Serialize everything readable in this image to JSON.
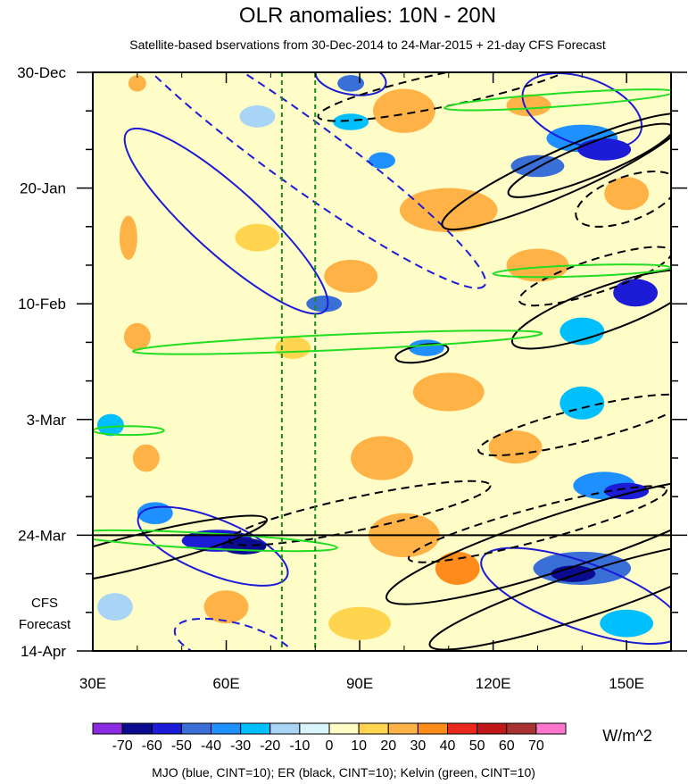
{
  "chart_data": {
    "type": "heatmap",
    "title": "OLR anomalies: 10N - 20N",
    "subtitle": "Satellite-based bservations from 30-Dec-2014 to 24-Mar-2015 + 21-day CFS Forecast",
    "x_axis": {
      "label": "",
      "range": [
        30,
        160
      ],
      "ticks": [
        {
          "value": 30,
          "label": "30E"
        },
        {
          "value": 60,
          "label": "60E"
        },
        {
          "value": 90,
          "label": "90E"
        },
        {
          "value": 120,
          "label": "120E"
        },
        {
          "value": 150,
          "label": "150E"
        }
      ],
      "minor_ticks": [
        40,
        50,
        70,
        80,
        100,
        110,
        130,
        140
      ]
    },
    "y_axis": {
      "label": "",
      "range_days": [
        0,
        105
      ],
      "direction": "time increases downward",
      "ticks": [
        {
          "day": 0,
          "label": "30-Dec"
        },
        {
          "day": 21,
          "label": "20-Jan"
        },
        {
          "day": 42,
          "label": "10-Feb"
        },
        {
          "day": 63,
          "label": "3-Mar"
        },
        {
          "day": 84,
          "label": "24-Mar"
        },
        {
          "day": 105,
          "label": "14-Apr"
        }
      ],
      "minor_tick_every_days": 7
    },
    "forecast_start_day": 84,
    "forecast_label_line1": "CFS",
    "forecast_label_line2": "Forecast",
    "reference_lon_lines": [
      72.5,
      80
    ],
    "colorbar": {
      "units": "W/m^2",
      "levels": [
        -70,
        -60,
        -50,
        -40,
        -30,
        -20,
        -10,
        0,
        10,
        20,
        30,
        40,
        50,
        60,
        70
      ],
      "colors": [
        "#8a2be2",
        "#0b0b8f",
        "#1c1cd6",
        "#3a6fd8",
        "#1e90ff",
        "#00bfff",
        "#a8d5f5",
        "#d9f4fa",
        "#fffdc7",
        "#ffd54f",
        "#ffb347",
        "#ff8c1a",
        "#e8291c",
        "#c01818",
        "#a83232",
        "#ff77cc"
      ]
    },
    "anomaly_cells": [
      {
        "lon": 40,
        "day": 2,
        "w": 4,
        "h": 3,
        "value": 20
      },
      {
        "lon": 88,
        "day": 2,
        "w": 6,
        "h": 3,
        "value": -50
      },
      {
        "lon": 100,
        "day": 7,
        "w": 14,
        "h": 8,
        "value": 20
      },
      {
        "lon": 88,
        "day": 9,
        "w": 8,
        "h": 3,
        "value": -30
      },
      {
        "lon": 67,
        "day": 8,
        "w": 8,
        "h": 4,
        "value": -20
      },
      {
        "lon": 128,
        "day": 6,
        "w": 10,
        "h": 4,
        "value": 20
      },
      {
        "lon": 140,
        "day": 12,
        "w": 16,
        "h": 5,
        "value": -40
      },
      {
        "lon": 145,
        "day": 14,
        "w": 12,
        "h": 4,
        "value": -60
      },
      {
        "lon": 130,
        "day": 17,
        "w": 12,
        "h": 4,
        "value": -50
      },
      {
        "lon": 95,
        "day": 16,
        "w": 6,
        "h": 3,
        "value": -40
      },
      {
        "lon": 110,
        "day": 25,
        "w": 22,
        "h": 8,
        "value": 20
      },
      {
        "lon": 150,
        "day": 22,
        "w": 10,
        "h": 6,
        "value": 20
      },
      {
        "lon": 38,
        "day": 30,
        "w": 4,
        "h": 8,
        "value": 20
      },
      {
        "lon": 67,
        "day": 30,
        "w": 10,
        "h": 5,
        "value": 10
      },
      {
        "lon": 88,
        "day": 37,
        "w": 12,
        "h": 6,
        "value": 20
      },
      {
        "lon": 82,
        "day": 42,
        "w": 8,
        "h": 3,
        "value": -50
      },
      {
        "lon": 130,
        "day": 35,
        "w": 14,
        "h": 6,
        "value": 20
      },
      {
        "lon": 152,
        "day": 40,
        "w": 10,
        "h": 5,
        "value": -60
      },
      {
        "lon": 140,
        "day": 47,
        "w": 10,
        "h": 5,
        "value": -30
      },
      {
        "lon": 105,
        "day": 50,
        "w": 8,
        "h": 3,
        "value": -40
      },
      {
        "lon": 40,
        "day": 48,
        "w": 6,
        "h": 5,
        "value": 20
      },
      {
        "lon": 75,
        "day": 50,
        "w": 8,
        "h": 4,
        "value": 10
      },
      {
        "lon": 110,
        "day": 58,
        "w": 16,
        "h": 7,
        "value": 20
      },
      {
        "lon": 140,
        "day": 60,
        "w": 10,
        "h": 6,
        "value": -30
      },
      {
        "lon": 34,
        "day": 64,
        "w": 6,
        "h": 4,
        "value": -30
      },
      {
        "lon": 42,
        "day": 70,
        "w": 6,
        "h": 5,
        "value": 20
      },
      {
        "lon": 95,
        "day": 70,
        "w": 14,
        "h": 8,
        "value": 20
      },
      {
        "lon": 125,
        "day": 68,
        "w": 12,
        "h": 6,
        "value": 20
      },
      {
        "lon": 145,
        "day": 75,
        "w": 14,
        "h": 5,
        "value": -40
      },
      {
        "lon": 150,
        "day": 76,
        "w": 10,
        "h": 3,
        "value": -60
      },
      {
        "lon": 44,
        "day": 80,
        "w": 8,
        "h": 4,
        "value": -40
      },
      {
        "lon": 58,
        "day": 85,
        "w": 16,
        "h": 4,
        "value": -60
      },
      {
        "lon": 64,
        "day": 86,
        "w": 10,
        "h": 3,
        "value": -70
      },
      {
        "lon": 100,
        "day": 84,
        "w": 16,
        "h": 8,
        "value": 20
      },
      {
        "lon": 112,
        "day": 90,
        "w": 10,
        "h": 6,
        "value": 30
      },
      {
        "lon": 140,
        "day": 90,
        "w": 22,
        "h": 6,
        "value": -50
      },
      {
        "lon": 138,
        "day": 91,
        "w": 10,
        "h": 3,
        "value": -70
      },
      {
        "lon": 35,
        "day": 97,
        "w": 8,
        "h": 5,
        "value": -20
      },
      {
        "lon": 60,
        "day": 97,
        "w": 10,
        "h": 6,
        "value": 20
      },
      {
        "lon": 90,
        "day": 100,
        "w": 14,
        "h": 6,
        "value": 10
      },
      {
        "lon": 150,
        "day": 100,
        "w": 12,
        "h": 5,
        "value": -30
      }
    ],
    "contours": [
      {
        "wave": "MJO",
        "color": "blue",
        "sign": "negative",
        "cx": 60,
        "cy": 27,
        "rx": 30,
        "ry": 6,
        "angle": 42
      },
      {
        "wave": "MJO",
        "color": "blue",
        "sign": "positive",
        "cx": 76,
        "cy": 14,
        "rx": 52,
        "ry": 6,
        "angle": 36
      },
      {
        "wave": "MJO",
        "color": "blue",
        "sign": "negative",
        "cx": 88,
        "cy": 1,
        "rx": 8,
        "ry": 3,
        "angle": 10
      },
      {
        "wave": "MJO",
        "color": "blue",
        "sign": "negative",
        "cx": 140,
        "cy": 7,
        "rx": 14,
        "ry": 6,
        "angle": 20
      },
      {
        "wave": "MJO",
        "color": "blue",
        "sign": "negative",
        "cx": 57,
        "cy": 86,
        "rx": 18,
        "ry": 5,
        "angle": 22
      },
      {
        "wave": "MJO",
        "color": "blue",
        "sign": "negative",
        "cx": 140,
        "cy": 95,
        "rx": 24,
        "ry": 6,
        "angle": 20
      },
      {
        "wave": "MJO",
        "color": "blue",
        "sign": "positive",
        "cx": 62,
        "cy": 104,
        "rx": 14,
        "ry": 4,
        "angle": 15
      },
      {
        "wave": "ER",
        "color": "black",
        "sign": "negative",
        "cx": 136,
        "cy": 18,
        "rx": 30,
        "ry": 4,
        "angle": -24
      },
      {
        "wave": "ER",
        "color": "black",
        "sign": "negative",
        "cx": 142,
        "cy": 16,
        "rx": 20,
        "ry": 3,
        "angle": -22
      },
      {
        "wave": "ER",
        "color": "black",
        "sign": "positive",
        "cx": 110,
        "cy": 3,
        "rx": 30,
        "ry": 3,
        "angle": -12
      },
      {
        "wave": "ER",
        "color": "black",
        "sign": "positive",
        "cx": 150,
        "cy": 23,
        "rx": 12,
        "ry": 4,
        "angle": -20
      },
      {
        "wave": "ER",
        "color": "black",
        "sign": "negative",
        "cx": 145,
        "cy": 43,
        "rx": 22,
        "ry": 4,
        "angle": -20
      },
      {
        "wave": "ER",
        "color": "black",
        "sign": "positive",
        "cx": 143,
        "cy": 37,
        "rx": 18,
        "ry": 3,
        "angle": -18
      },
      {
        "wave": "ER",
        "color": "black",
        "sign": "negative",
        "cx": 104,
        "cy": 51,
        "rx": 6,
        "ry": 1.5,
        "angle": -10
      },
      {
        "wave": "ER",
        "color": "black",
        "sign": "positive",
        "cx": 140,
        "cy": 64,
        "rx": 24,
        "ry": 3,
        "angle": -14
      },
      {
        "wave": "ER",
        "color": "black",
        "sign": "negative",
        "cx": 136,
        "cy": 85,
        "rx": 42,
        "ry": 5,
        "angle": -18
      },
      {
        "wave": "ER",
        "color": "black",
        "sign": "negative",
        "cx": 140,
        "cy": 95,
        "rx": 36,
        "ry": 4,
        "angle": -18
      },
      {
        "wave": "ER",
        "color": "black",
        "sign": "positive",
        "cx": 130,
        "cy": 82,
        "rx": 30,
        "ry": 3,
        "angle": -15
      },
      {
        "wave": "ER",
        "color": "black",
        "sign": "positive",
        "cx": 90,
        "cy": 80,
        "rx": 30,
        "ry": 3,
        "angle": -12
      },
      {
        "wave": "ER",
        "color": "black",
        "sign": "negative",
        "cx": 40,
        "cy": 87,
        "rx": 30,
        "ry": 3,
        "angle": -14
      },
      {
        "wave": "Kelvin",
        "color": "green",
        "sign": "negative",
        "cx": 85,
        "cy": 49,
        "rx": 46,
        "ry": 1.4,
        "angle": -2.5
      },
      {
        "wave": "Kelvin",
        "color": "green",
        "sign": "negative",
        "cx": 135,
        "cy": 5,
        "rx": 26,
        "ry": 1.2,
        "angle": -4
      },
      {
        "wave": "Kelvin",
        "color": "green",
        "sign": "negative",
        "cx": 140,
        "cy": 36,
        "rx": 20,
        "ry": 1.0,
        "angle": -2
      },
      {
        "wave": "Kelvin",
        "color": "green",
        "sign": "negative",
        "cx": 55,
        "cy": 85,
        "rx": 30,
        "ry": 1.4,
        "angle": 3
      },
      {
        "wave": "Kelvin",
        "color": "green",
        "sign": "negative",
        "cx": 38,
        "cy": 65,
        "rx": 8,
        "ry": 0.8,
        "angle": 0
      }
    ],
    "legend_note": "MJO (blue, CINT=10); ER (black, CINT=10); Kelvin (green, CINT=10)"
  }
}
